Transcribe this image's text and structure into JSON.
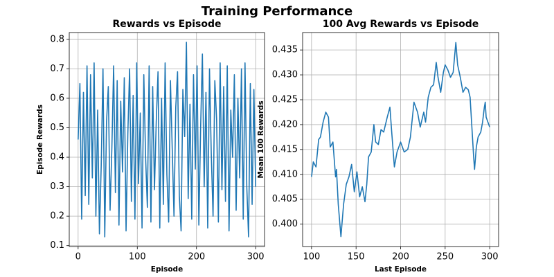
{
  "title": "Training Performance",
  "chart_data": [
    {
      "type": "line",
      "title": "Rewards vs Episode",
      "xlabel": "Episode",
      "ylabel": "Episode Rewards",
      "color": "#1f77b4",
      "grid": true,
      "x": [
        0,
        3,
        6,
        9,
        12,
        15,
        18,
        21,
        24,
        27,
        30,
        33,
        36,
        39,
        42,
        45,
        48,
        51,
        54,
        57,
        60,
        63,
        66,
        69,
        72,
        75,
        78,
        81,
        84,
        87,
        90,
        93,
        96,
        99,
        102,
        105,
        108,
        111,
        114,
        117,
        120,
        123,
        126,
        129,
        132,
        135,
        138,
        141,
        144,
        147,
        150,
        153,
        156,
        159,
        162,
        165,
        168,
        171,
        174,
        177,
        180,
        183,
        186,
        189,
        192,
        195,
        198,
        201,
        204,
        207,
        210,
        213,
        216,
        219,
        222,
        225,
        228,
        231,
        234,
        237,
        240,
        243,
        246,
        249,
        252,
        255,
        258,
        261,
        264,
        267,
        270,
        273,
        276,
        279,
        282,
        285,
        288,
        291,
        294,
        297,
        300
      ],
      "values": [
        0.46,
        0.65,
        0.19,
        0.62,
        0.27,
        0.71,
        0.24,
        0.68,
        0.33,
        0.72,
        0.2,
        0.56,
        0.14,
        0.37,
        0.7,
        0.13,
        0.52,
        0.64,
        0.22,
        0.43,
        0.71,
        0.28,
        0.66,
        0.17,
        0.59,
        0.35,
        0.67,
        0.15,
        0.48,
        0.7,
        0.25,
        0.61,
        0.19,
        0.72,
        0.31,
        0.55,
        0.16,
        0.68,
        0.4,
        0.23,
        0.71,
        0.18,
        0.64,
        0.29,
        0.52,
        0.69,
        0.16,
        0.6,
        0.24,
        0.72,
        0.34,
        0.18,
        0.66,
        0.43,
        0.2,
        0.57,
        0.69,
        0.27,
        0.15,
        0.63,
        0.47,
        0.79,
        0.26,
        0.58,
        0.19,
        0.68,
        0.36,
        0.71,
        0.17,
        0.5,
        0.75,
        0.3,
        0.62,
        0.16,
        0.7,
        0.41,
        0.2,
        0.66,
        0.53,
        0.18,
        0.72,
        0.29,
        0.64,
        0.25,
        0.71,
        0.15,
        0.56,
        0.4,
        0.68,
        0.22,
        0.6,
        0.33,
        0.7,
        0.19,
        0.72,
        0.3,
        0.13,
        0.65,
        0.24,
        0.63,
        0.3
      ],
      "xlim": [
        -15,
        315
      ],
      "xticks": [
        0,
        100,
        200,
        300
      ],
      "ylim": [
        0.097,
        0.823
      ],
      "yticks": [
        0.1,
        0.2,
        0.3,
        0.4,
        0.5,
        0.6,
        0.7,
        0.8
      ]
    },
    {
      "type": "line",
      "title": "100 Avg Rewards vs Episode",
      "xlabel": "Last Episode",
      "ylabel": "Mean 100 Rewards",
      "color": "#1f77b4",
      "grid": true,
      "x": [
        100,
        102,
        105,
        108,
        110,
        113,
        116,
        119,
        121,
        124,
        127,
        128,
        130,
        133,
        136,
        139,
        142,
        145,
        148,
        151,
        154,
        157,
        160,
        162,
        164,
        167,
        170,
        172,
        175,
        178,
        181,
        185,
        188,
        190,
        193,
        196,
        200,
        204,
        208,
        211,
        215,
        219,
        222,
        226,
        228,
        231,
        234,
        237,
        240,
        242,
        245,
        248,
        250,
        253,
        256,
        259,
        262,
        264,
        267,
        270,
        273,
        276,
        278,
        280,
        282,
        283,
        285,
        287,
        290,
        292,
        294,
        295,
        296,
        298,
        300
      ],
      "values": [
        0.4095,
        0.4125,
        0.4115,
        0.417,
        0.4175,
        0.4205,
        0.4225,
        0.4215,
        0.4155,
        0.4165,
        0.4095,
        0.411,
        0.404,
        0.3975,
        0.404,
        0.408,
        0.4095,
        0.412,
        0.4065,
        0.4105,
        0.4055,
        0.4075,
        0.4045,
        0.408,
        0.4135,
        0.4145,
        0.42,
        0.4165,
        0.416,
        0.419,
        0.4185,
        0.4215,
        0.4235,
        0.4185,
        0.4115,
        0.4145,
        0.4165,
        0.4145,
        0.415,
        0.4175,
        0.4245,
        0.4225,
        0.4195,
        0.4225,
        0.4205,
        0.4255,
        0.4275,
        0.428,
        0.4325,
        0.4295,
        0.4265,
        0.4305,
        0.432,
        0.431,
        0.4295,
        0.4305,
        0.4365,
        0.432,
        0.4295,
        0.4265,
        0.4275,
        0.427,
        0.4255,
        0.4195,
        0.4135,
        0.411,
        0.4155,
        0.4175,
        0.4185,
        0.4205,
        0.4235,
        0.4245,
        0.4215,
        0.4205,
        0.4195
      ],
      "xlim": [
        90,
        310
      ],
      "xticks": [
        100,
        150,
        200,
        250,
        300
      ],
      "ylim": [
        0.3955,
        0.4385
      ],
      "yticks": [
        {
          "value": 0.4,
          "label": "0.400"
        },
        {
          "value": 0.405,
          "label": "0.405"
        },
        {
          "value": 0.41,
          "label": "0.410"
        },
        {
          "value": 0.415,
          "label": "0.415"
        },
        {
          "value": 0.42,
          "label": "0.420"
        },
        {
          "value": 0.425,
          "label": "0.425"
        },
        {
          "value": 0.43,
          "label": "0.430"
        },
        {
          "value": 0.435,
          "label": "0.435"
        }
      ]
    }
  ]
}
